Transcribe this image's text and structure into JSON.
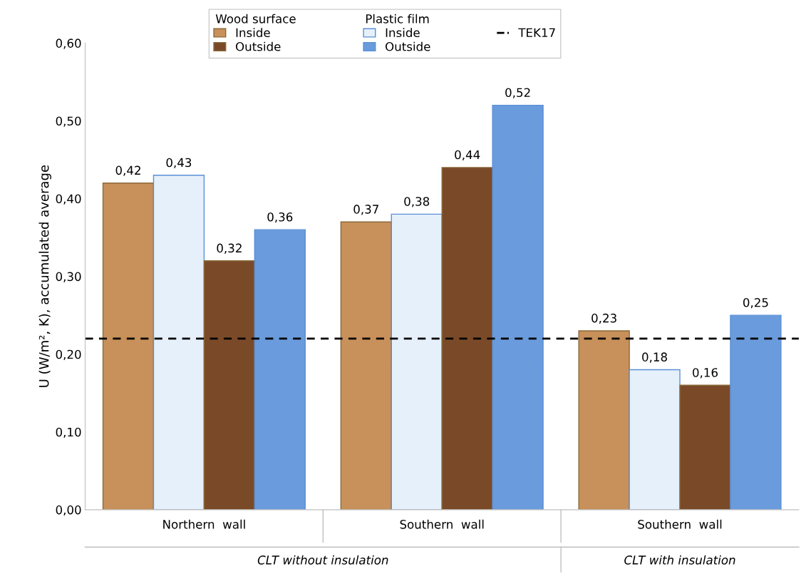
{
  "chart_data": {
    "type": "bar",
    "ylabel": "U (W/m², K), accumulated average",
    "categories": [
      "Northern  wall",
      "Southern  wall",
      "Southern  wall"
    ],
    "series": [
      {
        "name": "Inside",
        "color": "#c8905a",
        "values": [
          0.42,
          0.37,
          0.23
        ],
        "value_labels": [
          "0,42",
          "0,37",
          "0,23"
        ]
      },
      {
        "name": "Inside",
        "color": "#e6f0fa",
        "values": [
          0.43,
          0.38,
          0.18
        ],
        "value_labels": [
          "0,43",
          "0,38",
          "0,18"
        ]
      },
      {
        "name": "Outside",
        "color": "#7a4a28",
        "values": [
          0.32,
          0.44,
          0.16
        ],
        "value_labels": [
          "0,32",
          "0,44",
          "0,16"
        ]
      },
      {
        "name": "Outside",
        "color": "#6a9bdc",
        "values": [
          0.36,
          0.52,
          0.25
        ],
        "value_labels": [
          "0,36",
          "0,52",
          "0,25"
        ]
      }
    ],
    "ylim": [
      0,
      0.6
    ],
    "yticks": [
      {
        "value": 0,
        "label": "0,00"
      },
      {
        "value": 0.1,
        "label": "0,10"
      },
      {
        "value": 0.2,
        "label": "0,20"
      },
      {
        "value": 0.3,
        "label": "0,30"
      },
      {
        "value": 0.4,
        "label": "0,40"
      },
      {
        "value": 0.5,
        "label": "0,50"
      },
      {
        "value": 0.6,
        "label": "0,60"
      }
    ],
    "ref_lines": [
      {
        "axis": "y",
        "value": 0.22,
        "label": "TEK17",
        "color": "#000000",
        "line_style": "dashed"
      }
    ],
    "annotations": [
      "Wood surface",
      "Plastic film",
      "CLT without insulation",
      "CLT with insulation"
    ],
    "legend": "top",
    "grid": false
  }
}
